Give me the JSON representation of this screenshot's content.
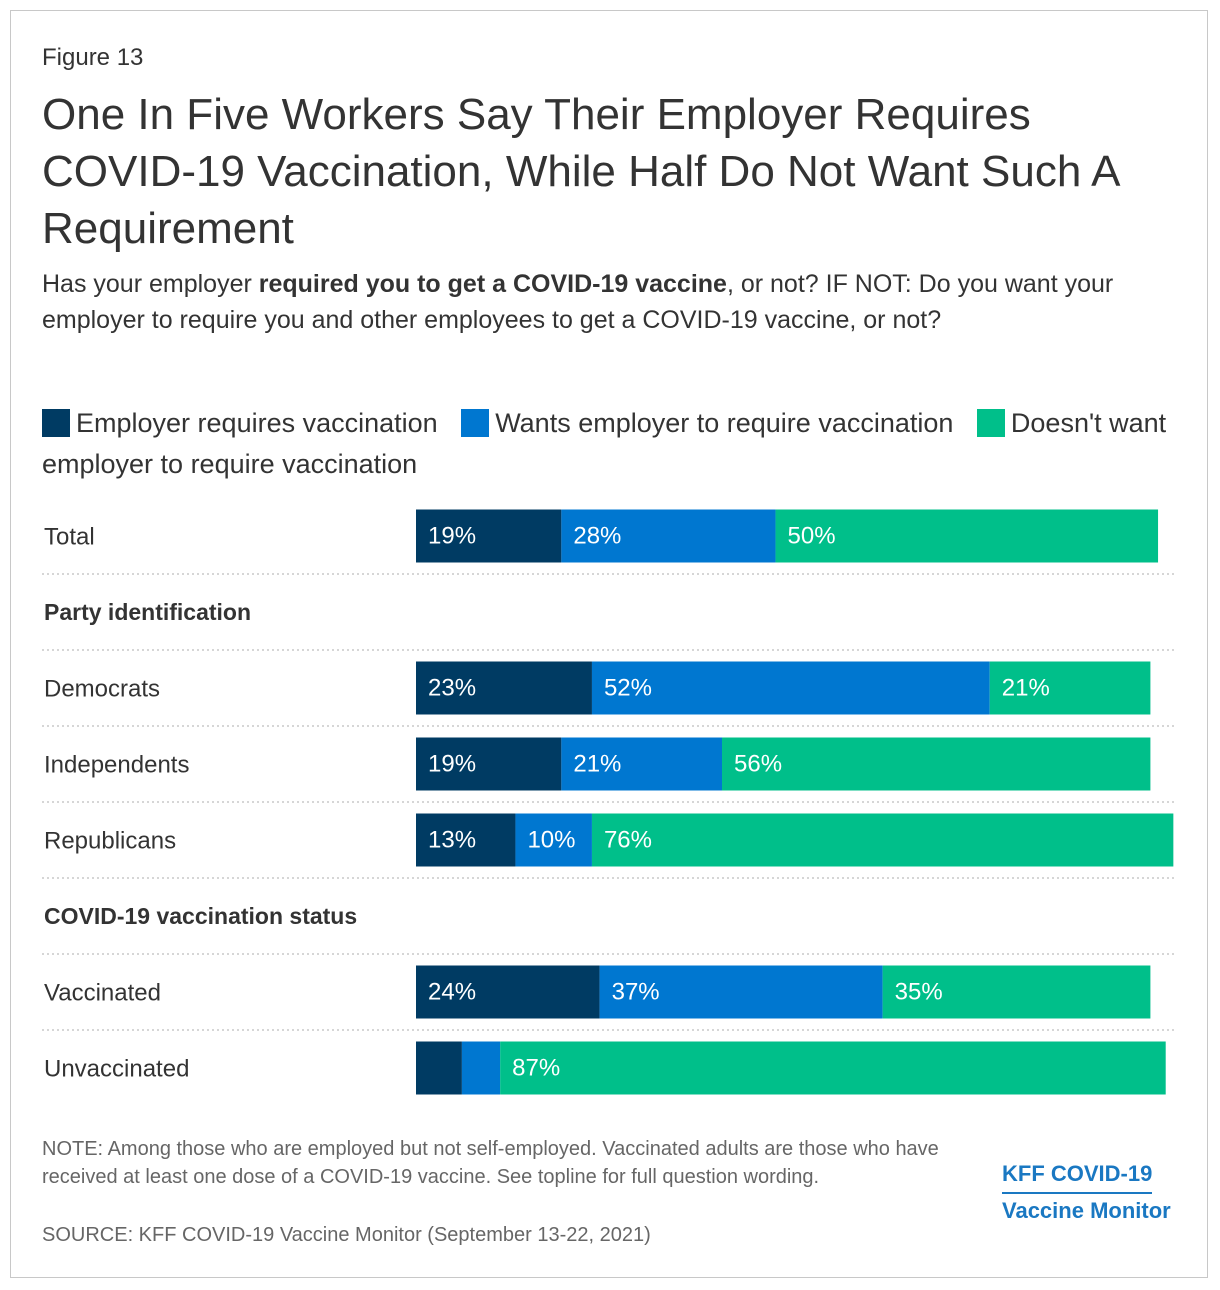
{
  "figure_label": "Figure 13",
  "title": "One In Five Workers Say Their Employer Requires COVID-19 Vaccination, While Half Do Not Want Such A Requirement",
  "subtitle": {
    "pre": "Has your employer ",
    "bold": "required you to get a COVID-19 vaccine",
    "post": ", or not? IF NOT: Do you want your employer to require you and other employees to get a COVID-19 vaccine, or not?"
  },
  "colors": {
    "employer_requires": "#003b63",
    "wants_require": "#0077d0",
    "doesnt_want": "#00bf8a",
    "divider": "#c8c8c8"
  },
  "note": "NOTE: Among those who are employed but not self-employed. Vaccinated adults are those who have received at least one dose of a COVID-19 vaccine. See topline for full question wording.",
  "source": "SOURCE: KFF COVID-19 Vaccine Monitor (September 13-22, 2021)",
  "brand": {
    "line1": "KFF COVID-19",
    "line2": "Vaccine Monitor"
  },
  "chart_data": {
    "type": "bar",
    "orientation": "horizontal",
    "stacked": true,
    "unit": "%",
    "xlim": [
      0,
      100
    ],
    "grid": false,
    "legend_position": "top",
    "series": [
      {
        "name": "Employer requires vaccination",
        "color_key": "employer_requires",
        "label_text_color": "#ffffff"
      },
      {
        "name": "Wants employer to require vaccination",
        "color_key": "wants_require",
        "label_text_color": "#ffffff"
      },
      {
        "name": "Doesn't want employer to require vaccination",
        "color_key": "doesnt_want",
        "label_text_color": "#ffffff"
      }
    ],
    "rows": [
      {
        "kind": "bar",
        "label": "Total",
        "values": [
          19,
          28,
          50
        ],
        "labels": [
          "19%",
          "28%",
          "50%"
        ]
      },
      {
        "kind": "header",
        "label": "Party identification"
      },
      {
        "kind": "bar",
        "label": "Democrats",
        "values": [
          23,
          52,
          21
        ],
        "labels": [
          "23%",
          "52%",
          "21%"
        ]
      },
      {
        "kind": "bar",
        "label": "Independents",
        "values": [
          19,
          21,
          56
        ],
        "labels": [
          "19%",
          "21%",
          "56%"
        ]
      },
      {
        "kind": "bar",
        "label": "Republicans",
        "values": [
          13,
          10,
          76
        ],
        "labels": [
          "13%",
          "10%",
          "76%"
        ]
      },
      {
        "kind": "header",
        "label": "COVID-19 vaccination status"
      },
      {
        "kind": "bar",
        "label": "Vaccinated",
        "values": [
          24,
          37,
          35
        ],
        "labels": [
          "24%",
          "37%",
          "35%"
        ]
      },
      {
        "kind": "bar",
        "label": "Unvaccinated",
        "values": [
          6,
          5,
          87
        ],
        "labels": [
          "",
          "",
          "87%"
        ]
      }
    ]
  }
}
